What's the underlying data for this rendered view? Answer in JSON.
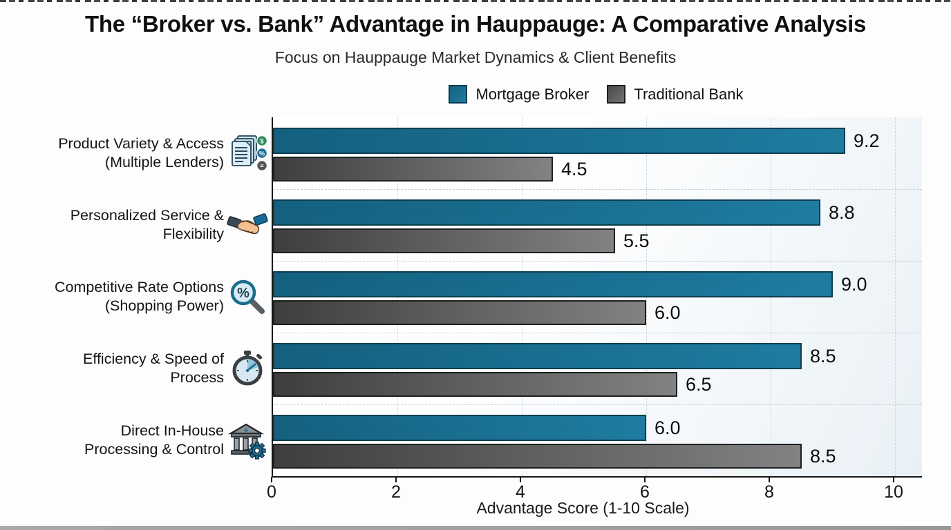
{
  "page": {
    "title": "The “Broker vs. Bank” Advantage in Hauppauge: A Comparative Analysis",
    "subtitle": "Focus on Hauppauge Market Dynamics & Client Benefits"
  },
  "legend": {
    "items": [
      {
        "label": "Mortgage Broker",
        "color": "#1b6b8c"
      },
      {
        "label": "Traditional Bank",
        "color": "#5a5a5a"
      }
    ]
  },
  "chart_data": {
    "type": "bar",
    "orientation": "horizontal",
    "title": "The “Broker vs. Bank” Advantage in Hauppauge: A Comparative Analysis",
    "subtitle": "Focus on Hauppauge Market Dynamics & Client Benefits",
    "xlabel": "Advantage Score (1-10 Scale)",
    "xlim": [
      0,
      10.4
    ],
    "xticks": [
      "0",
      "2",
      "4",
      "6",
      "8",
      "10"
    ],
    "grid": "dashed",
    "legend_position": "top",
    "categories": [
      "Product Variety & Access (Multiple Lenders)",
      "Personalized Service & Flexibility",
      "Competitive Rate Options (Shopping Power)",
      "Efficiency & Speed of Process",
      "Direct In-House Processing & Control"
    ],
    "category_lines": [
      [
        "Product Variety & Access",
        "(Multiple Lenders)"
      ],
      [
        "Personalized Service &",
        "Flexibility"
      ],
      [
        "Competitive Rate Options",
        "(Shopping Power)"
      ],
      [
        "Efficiency & Speed of",
        "Process"
      ],
      [
        "Direct In-House",
        "Processing & Control"
      ]
    ],
    "category_icons": [
      "documents-icon",
      "handshake-icon",
      "magnifier-percent-icon",
      "stopwatch-icon",
      "bank-gear-icon"
    ],
    "series": [
      {
        "name": "Mortgage Broker",
        "color": "#1b6b8c",
        "values": [
          9.2,
          8.8,
          9.0,
          8.5,
          6.0
        ],
        "labels": [
          "9.2",
          "8.8",
          "9.0",
          "8.5",
          "6.0"
        ]
      },
      {
        "name": "Traditional Bank",
        "color": "#5a5a5a",
        "values": [
          4.5,
          5.5,
          6.0,
          6.5,
          8.5
        ],
        "labels": [
          "4.5",
          "5.5",
          "6.0",
          "6.5",
          "8.5"
        ]
      }
    ]
  }
}
